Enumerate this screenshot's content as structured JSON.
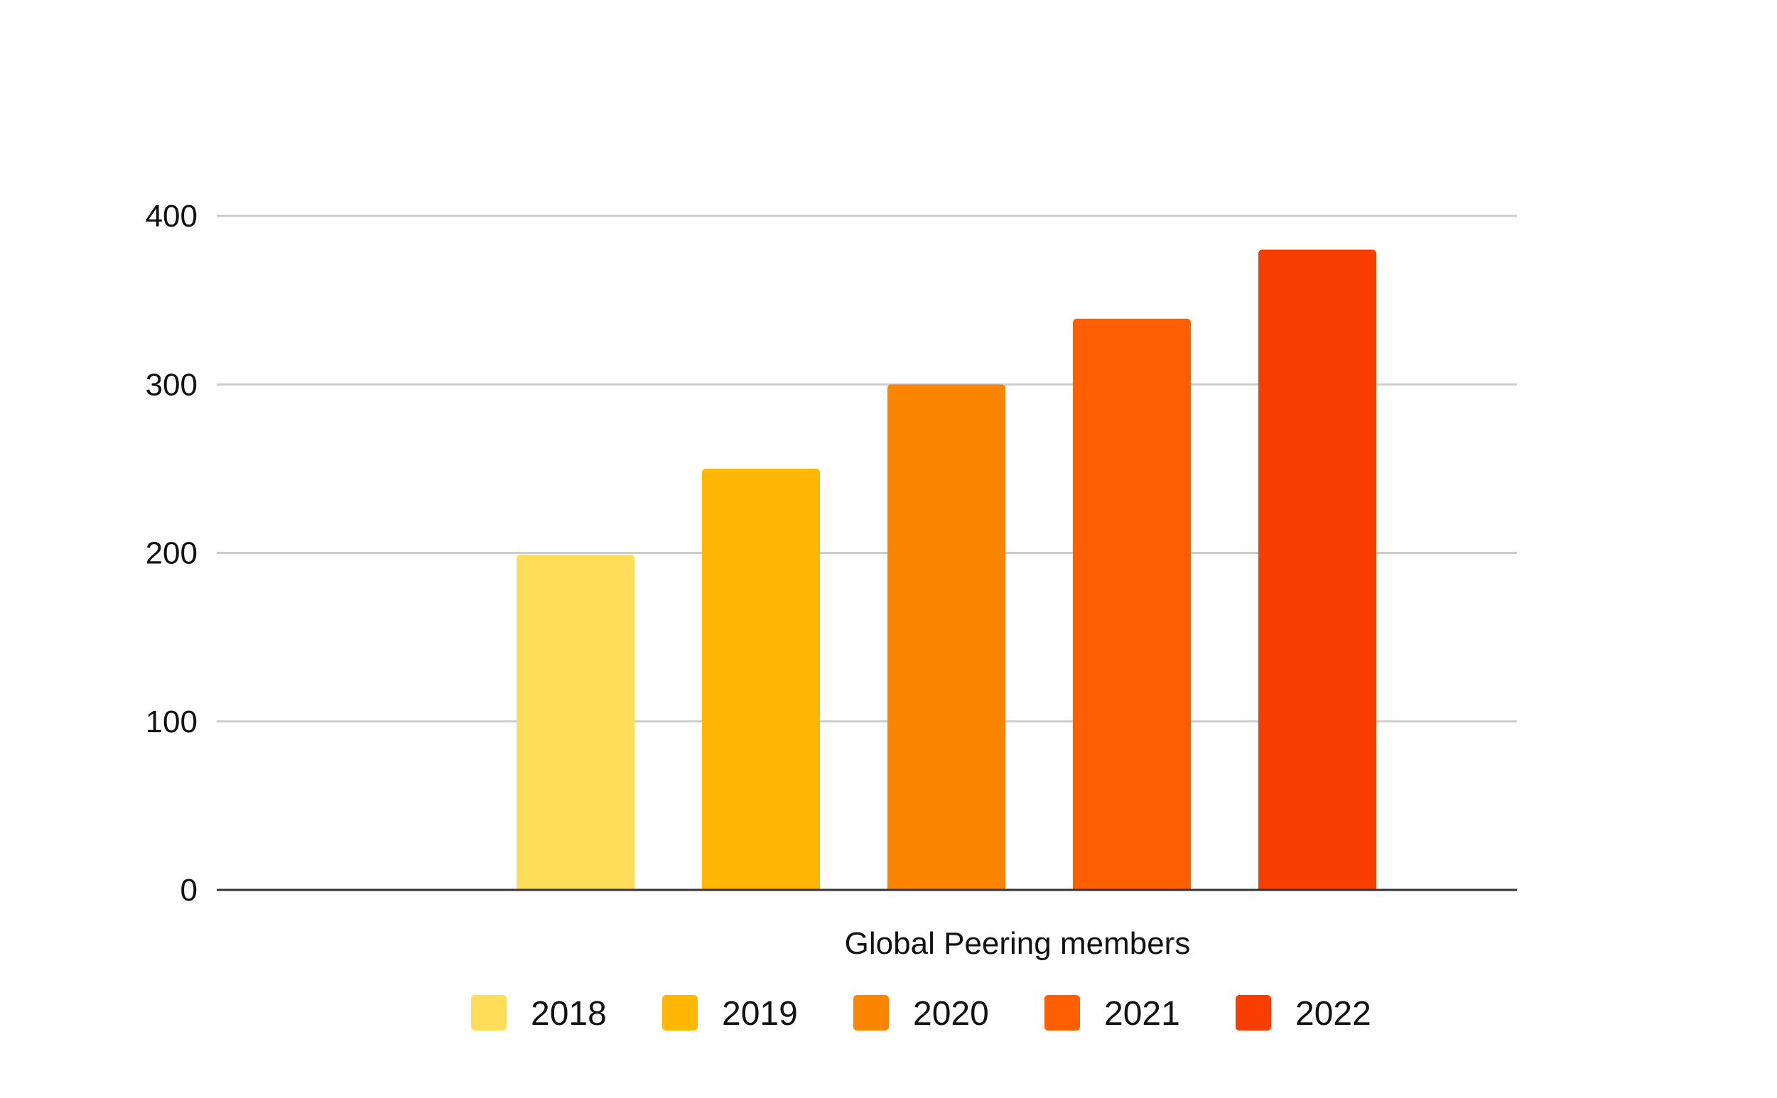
{
  "chart_data": {
    "type": "bar",
    "title": "",
    "xlabel": "Global Peering members",
    "ylabel": "",
    "ylim": [
      0,
      400
    ],
    "yticks": [
      0,
      100,
      200,
      300,
      400
    ],
    "grid": true,
    "legend_position": "bottom",
    "categories": [
      "Global Peering members"
    ],
    "series": [
      {
        "name": "2018",
        "values": [
          199
        ],
        "color": "#FFDC5A"
      },
      {
        "name": "2019",
        "values": [
          250
        ],
        "color": "#FFB703"
      },
      {
        "name": "2020",
        "values": [
          300
        ],
        "color": "#FB8500"
      },
      {
        "name": "2021",
        "values": [
          339
        ],
        "color": "#FF5F00"
      },
      {
        "name": "2022",
        "values": [
          380
        ],
        "color": "#F73E00"
      }
    ]
  }
}
